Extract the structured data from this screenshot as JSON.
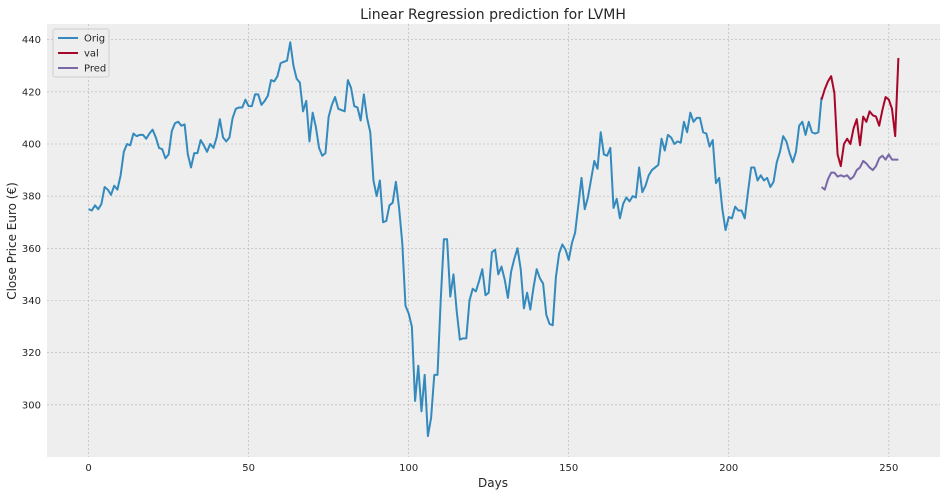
{
  "chart_data": {
    "type": "line",
    "title": "Linear Regression prediction for LVMH",
    "xlabel": "Days",
    "ylabel": "Close Price Euro (€)",
    "xlim": [
      -13,
      266
    ],
    "ylim": [
      280,
      446
    ],
    "xticks": [
      0,
      50,
      100,
      150,
      200,
      250
    ],
    "yticks": [
      300,
      320,
      340,
      360,
      380,
      400,
      420,
      440
    ],
    "grid": true,
    "legend_position": "top-left",
    "series": [
      {
        "name": "Orig",
        "color": "#348abd",
        "x_start": 0,
        "values": [
          375,
          374.5,
          376.5,
          375,
          377,
          383.5,
          382.5,
          380.5,
          384,
          382.5,
          388,
          397,
          400,
          399.5,
          404,
          403,
          403.5,
          403.5,
          402,
          404,
          405.5,
          402.5,
          398.5,
          398,
          394.5,
          396,
          405,
          408,
          408.5,
          407,
          407.5,
          396,
          391,
          396.5,
          396.5,
          401.5,
          399.5,
          397,
          400,
          398.5,
          402.5,
          409.5,
          402.5,
          401,
          402.5,
          410,
          413.5,
          414,
          414,
          417,
          414.5,
          414.5,
          419,
          419,
          415,
          416.5,
          418.5,
          424.5,
          424,
          426,
          431,
          431.5,
          432,
          439,
          430,
          425,
          423.5,
          412.5,
          416.5,
          401,
          412,
          406.5,
          398.5,
          395.5,
          396.5,
          410.5,
          415,
          418,
          413.5,
          413,
          412.5,
          424.5,
          421.5,
          414.5,
          414,
          409,
          419,
          410,
          404.5,
          386,
          380,
          386,
          370,
          370.5,
          376.5,
          377.5,
          385.5,
          375.5,
          362,
          338,
          335,
          330,
          301.5,
          315,
          297.5,
          311.5,
          288,
          295,
          311.5,
          311.5,
          340,
          363.5,
          363.5,
          341.5,
          350,
          336,
          325,
          325.5,
          325.5,
          340,
          344.5,
          343.5,
          347.5,
          352,
          342,
          343,
          358.5,
          359.5,
          350,
          353,
          348,
          341,
          351,
          356,
          360,
          352,
          337,
          343,
          336.5,
          345,
          352,
          348.5,
          346.5,
          334.5,
          331,
          330.5,
          349,
          358,
          361.5,
          359.5,
          355.5,
          362,
          366,
          376.5,
          387,
          375,
          379.5,
          386.5,
          393.5,
          390.5,
          404.5,
          396,
          395.5,
          398.5,
          375.5,
          379,
          371.5,
          377,
          379.5,
          378,
          380,
          379.5,
          391,
          381.5,
          384,
          388,
          390,
          391,
          392,
          402,
          397.5,
          403.5,
          402.5,
          400,
          401,
          400.5,
          408.5,
          404.5,
          412,
          408.5,
          410,
          410,
          404.5,
          404,
          399,
          401.5,
          385,
          387,
          375,
          367,
          372,
          371.5,
          376,
          374.5,
          374.5,
          371.5,
          381.5,
          391,
          391,
          386,
          388,
          386,
          387,
          383.5,
          385.5,
          393,
          397,
          403,
          401,
          396.5,
          393,
          397,
          407,
          408.5,
          403.5,
          408.5,
          404.5,
          404,
          404.5,
          418
        ]
      },
      {
        "name": "val",
        "color": "#a60628",
        "x_start": 229,
        "values": [
          417,
          421,
          424,
          426,
          419.5,
          396,
          391.5,
          400,
          402,
          400,
          406,
          409.5,
          399.5,
          410.5,
          408.5,
          412.5,
          411,
          410.5,
          407,
          413,
          418,
          417,
          413.5,
          403,
          433
        ]
      },
      {
        "name": "Pred",
        "color": "#7a68a6",
        "x_start": 229,
        "values": [
          383.5,
          382.5,
          386.5,
          389,
          389,
          387.5,
          388,
          387.5,
          388,
          386.5,
          387.5,
          390,
          391,
          393.5,
          392.5,
          391,
          390,
          391.5,
          394.5,
          395.5,
          394,
          396,
          394,
          394,
          394
        ]
      }
    ]
  }
}
